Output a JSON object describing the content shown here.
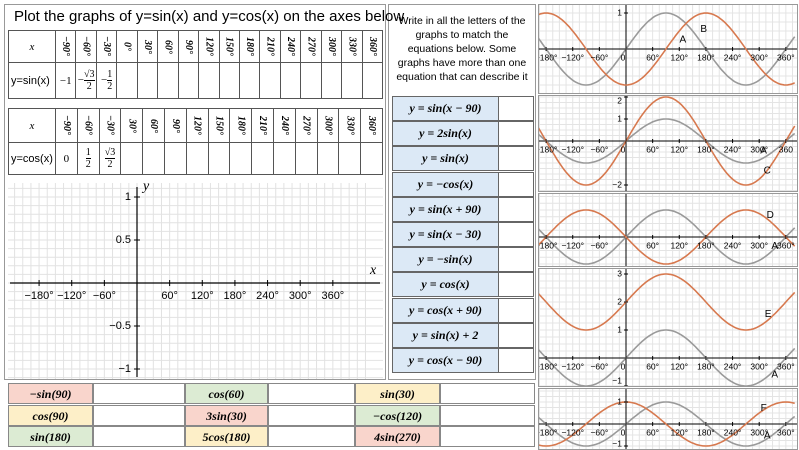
{
  "title": "Plot the graphs of y=sin(x) and y=cos(x) on the axes below",
  "sin_table": {
    "x_label": "x",
    "angles": [
      "−90°",
      "−60°",
      "−30°",
      "0°",
      "30°",
      "60°",
      "90°",
      "120°",
      "150°",
      "180°",
      "210°",
      "240°",
      "270°",
      "300°",
      "330°",
      "360°"
    ],
    "row_label": "y=sin(x)",
    "values": [
      "−1",
      {
        "sign": "−",
        "num": "√3",
        "den": "2"
      },
      {
        "sign": "−",
        "num": "1",
        "den": "2"
      }
    ]
  },
  "cos_table": {
    "x_label": "x",
    "angles": [
      "−90°",
      "−60°",
      "−30°",
      "30°",
      "60°",
      "90°",
      "120°",
      "150°",
      "180°",
      "210°",
      "240°",
      "270°",
      "300°",
      "330°",
      "360°"
    ],
    "row_label": "y=cos(x)",
    "values": [
      "0",
      {
        "num": "1",
        "den": "2"
      },
      {
        "num": "√3",
        "den": "2"
      }
    ]
  },
  "axes": {
    "x_label": "x",
    "y_label": "y",
    "x_ticks": [
      {
        "value": -180,
        "label": "−180°"
      },
      {
        "value": -120,
        "label": "−120°"
      },
      {
        "value": -60,
        "label": "−60°"
      },
      {
        "value": 60,
        "label": "60°"
      },
      {
        "value": 120,
        "label": "120°"
      },
      {
        "value": 180,
        "label": "180°"
      },
      {
        "value": 240,
        "label": "240°"
      },
      {
        "value": 300,
        "label": "300°"
      },
      {
        "value": 360,
        "label": "360°"
      }
    ],
    "y_ticks": [
      1,
      0.5,
      {
        "value": -0.5,
        "label": "−0.5"
      },
      {
        "value": -1,
        "label": "−1"
      }
    ]
  },
  "instructions": "Write in all the letters of the graphs to match the equations below. Some graphs have more than one equation that can describe it",
  "equations": [
    "y = sin(x − 90)",
    "y = 2sin(x)",
    "y = sin(x)",
    "y = −cos(x)",
    "y = sin(x + 90)",
    "y = sin(x − 30)",
    "y = −sin(x)",
    "y = cos(x)",
    "y = cos(x + 90)",
    "y = sin(x) + 2",
    "y = cos(x − 90)"
  ],
  "evaluate": [
    [
      {
        "text": "−sin(90)",
        "color": "#f9d5cc"
      },
      {
        "text": "cos(60)",
        "color": "#dcebd3"
      },
      {
        "text": "sin(30)",
        "color": "#fdefc8"
      }
    ],
    [
      {
        "text": "cos(90)",
        "color": "#fdefc8"
      },
      {
        "text": "3sin(30)",
        "color": "#f9d5cc"
      },
      {
        "text": "−cos(120)",
        "color": "#dcebd3"
      }
    ],
    [
      {
        "text": "sin(180)",
        "color": "#dcebd3"
      },
      {
        "text": "5cos(180)",
        "color": "#fdefc8"
      },
      {
        "text": "4sin(270)",
        "color": "#f9d5cc"
      }
    ]
  ],
  "graphs": [
    {
      "x_ticks": [
        {
          "value": -180,
          "label": "−180°"
        },
        {
          "value": -120,
          "label": "−120°"
        },
        {
          "value": -60,
          "label": "−60°"
        },
        0,
        {
          "value": 60,
          "label": "60°"
        },
        {
          "value": 120,
          "label": "120°"
        },
        {
          "value": 180,
          "label": "180°"
        },
        {
          "value": 240,
          "label": "240°"
        },
        {
          "value": 300,
          "label": "300°"
        },
        {
          "value": 360,
          "label": "360°"
        }
      ],
      "y_ticks": [
        1
      ],
      "labels": [
        "B",
        "A"
      ]
    },
    {
      "x_ticks": [
        {
          "value": -180,
          "label": "−180°"
        },
        {
          "value": -120,
          "label": "−120°"
        },
        {
          "value": -60,
          "label": "−60°"
        },
        0,
        {
          "value": 60,
          "label": "60°"
        },
        {
          "value": 120,
          "label": "120°"
        },
        {
          "value": 180,
          "label": "180°"
        },
        {
          "value": 240,
          "label": "240°"
        },
        {
          "value": 300,
          "label": "300°"
        },
        {
          "value": 360,
          "label": "360"
        }
      ],
      "y_ticks": [
        2,
        1,
        {
          "value": -2,
          "label": "−2"
        }
      ],
      "labels": [
        "A",
        "C"
      ]
    },
    {
      "x_ticks": [
        {
          "value": -180,
          "label": "−180°"
        },
        {
          "value": -120,
          "label": "−120°"
        },
        {
          "value": -60,
          "label": "−60°"
        },
        {
          "value": 60,
          "label": "60°"
        },
        {
          "value": 120,
          "label": "120°"
        },
        {
          "value": 180,
          "label": "180°"
        },
        {
          "value": 240,
          "label": "240°"
        },
        {
          "value": 300,
          "label": "300°"
        },
        {
          "value": 360,
          "label": "360°"
        }
      ],
      "labels": [
        "D",
        "A"
      ]
    },
    {
      "x_ticks": [
        {
          "value": -180,
          "label": "−180°"
        },
        {
          "value": -120,
          "label": "−120°"
        },
        {
          "value": -60,
          "label": "−60°"
        },
        0,
        {
          "value": 60,
          "label": "60°"
        },
        {
          "value": 120,
          "label": "120°"
        },
        {
          "value": 180,
          "label": "180°"
        },
        {
          "value": 240,
          "label": "240°"
        },
        {
          "value": 300,
          "label": "300°"
        },
        {
          "value": 360,
          "label": "360°"
        }
      ],
      "y_ticks": [
        3,
        2,
        1,
        {
          "value": -1,
          "label": "−1"
        }
      ],
      "labels": [
        "E",
        "A"
      ]
    },
    {
      "x_ticks": [
        {
          "value": -180,
          "label": "−180°"
        },
        {
          "value": -120,
          "label": "−120°"
        },
        {
          "value": -60,
          "label": "−60°"
        },
        0,
        {
          "value": 60,
          "label": "60°"
        },
        {
          "value": 120,
          "label": "120°"
        },
        {
          "value": 180,
          "label": "180°"
        },
        {
          "value": 240,
          "label": "240°"
        },
        {
          "value": 300,
          "label": "300°"
        },
        {
          "value": 360,
          "label": "360°"
        }
      ],
      "y_ticks": [
        1,
        {
          "value": -1,
          "label": "−1"
        }
      ],
      "labels": [
        "F",
        "A"
      ]
    }
  ]
}
